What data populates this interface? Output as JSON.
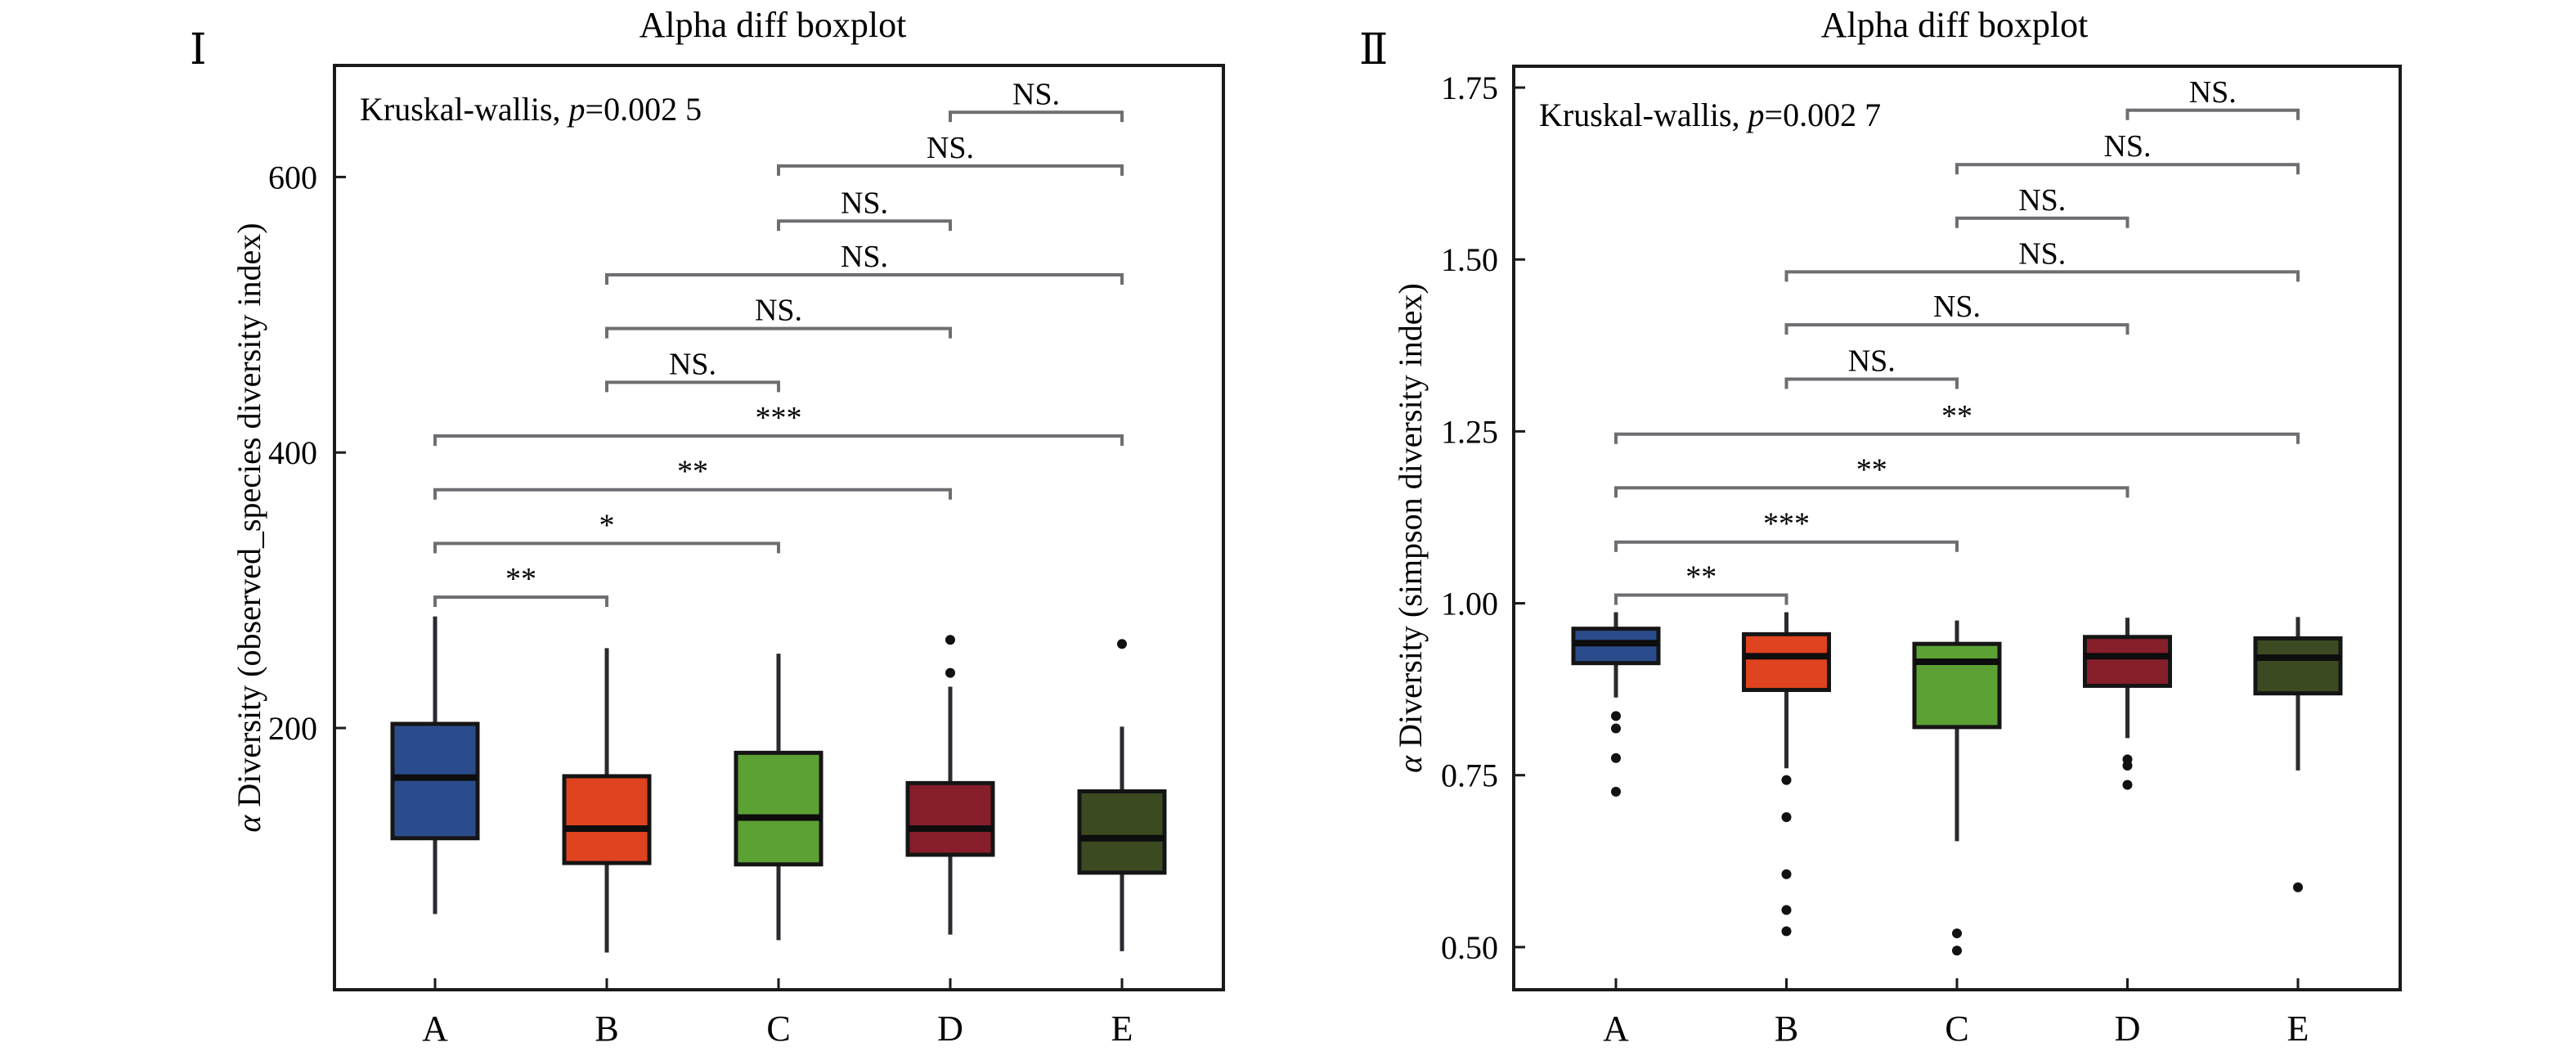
{
  "chart_data": [
    {
      "type": "boxplot",
      "panel_label": "Ⅰ",
      "title": "Alpha diff boxplot",
      "annotation_prefix": "Kruskal-wallis, ",
      "annotation_p_symbol": "p",
      "annotation_value": "=0.002 5",
      "xlabel": "",
      "ylabel_symbol": "α",
      "ylabel": " Diversity (observed_species diversity index)",
      "ylim": [
        10,
        681
      ],
      "yticks": [
        200,
        400,
        600
      ],
      "ytick_labels": [
        "200",
        "400",
        "600"
      ],
      "categories": [
        "A",
        "B",
        "C",
        "D",
        "E"
      ],
      "colors": [
        "#2b4c8c",
        "#e0431f",
        "#5ca133",
        "#861f2a",
        "#3c4a22"
      ],
      "boxes": [
        {
          "category": "A",
          "whisker_low": 65,
          "q1": 120,
          "median": 164,
          "q3": 203,
          "whisker_high": 281,
          "outliers": []
        },
        {
          "category": "B",
          "whisker_low": 37,
          "q1": 102,
          "median": 127,
          "q3": 165,
          "whisker_high": 258,
          "outliers": []
        },
        {
          "category": "C",
          "whisker_low": 46,
          "q1": 101,
          "median": 135,
          "q3": 182,
          "whisker_high": 254,
          "outliers": []
        },
        {
          "category": "D",
          "whisker_low": 50,
          "q1": 108,
          "median": 127,
          "q3": 160,
          "whisker_high": 230,
          "outliers": [
            240,
            264
          ]
        },
        {
          "category": "E",
          "whisker_low": 38,
          "q1": 95,
          "median": 120,
          "q3": 154,
          "whisker_high": 201,
          "outliers": [
            261
          ]
        }
      ],
      "comparisons": [
        {
          "from": "A",
          "to": "B",
          "y": 295,
          "label": "**"
        },
        {
          "from": "A",
          "to": "C",
          "y": 334,
          "label": "*"
        },
        {
          "from": "A",
          "to": "D",
          "y": 373,
          "label": "**"
        },
        {
          "from": "A",
          "to": "E",
          "y": 412,
          "label": "***"
        },
        {
          "from": "B",
          "to": "C",
          "y": 451,
          "label": "NS."
        },
        {
          "from": "B",
          "to": "D",
          "y": 490,
          "label": "NS."
        },
        {
          "from": "B",
          "to": "E",
          "y": 529,
          "label": "NS."
        },
        {
          "from": "C",
          "to": "D",
          "y": 568,
          "label": "NS."
        },
        {
          "from": "C",
          "to": "E",
          "y": 608,
          "label": "NS."
        },
        {
          "from": "D",
          "to": "E",
          "y": 647,
          "label": "NS."
        }
      ],
      "grid": false,
      "legend": "none"
    },
    {
      "type": "boxplot",
      "panel_label": "Ⅱ",
      "title": "Alpha diff boxplot",
      "annotation_prefix": "Kruskal-wallis, ",
      "annotation_p_symbol": "p",
      "annotation_value": "=0.002 7",
      "xlabel": "",
      "ylabel_symbol": "α",
      "ylabel": " Diversity (simpson diversity index)",
      "ylim": [
        0.438,
        1.781
      ],
      "yticks": [
        0.5,
        0.75,
        1.0,
        1.25,
        1.5,
        1.75
      ],
      "ytick_labels": [
        "0.50",
        "0.75",
        "1.00",
        "1.25",
        "1.50",
        "1.75"
      ],
      "categories": [
        "A",
        "B",
        "C",
        "D",
        "E"
      ],
      "colors": [
        "#2b4c8c",
        "#e0431f",
        "#5ca133",
        "#861f2a",
        "#3c4a22"
      ],
      "boxes": [
        {
          "category": "A",
          "whisker_low": 0.863,
          "q1": 0.913,
          "median": 0.942,
          "q3": 0.963,
          "whisker_high": 0.987,
          "outliers": [
            0.836,
            0.818,
            0.775,
            0.726
          ]
        },
        {
          "category": "B",
          "whisker_low": 0.76,
          "q1": 0.874,
          "median": 0.923,
          "q3": 0.955,
          "whisker_high": 0.987,
          "outliers": [
            0.743,
            0.689,
            0.606,
            0.554,
            0.523
          ]
        },
        {
          "category": "C",
          "whisker_low": 0.654,
          "q1": 0.82,
          "median": 0.915,
          "q3": 0.941,
          "whisker_high": 0.975,
          "outliers": [
            0.52,
            0.495
          ]
        },
        {
          "category": "D",
          "whisker_low": 0.804,
          "q1": 0.88,
          "median": 0.923,
          "q3": 0.951,
          "whisker_high": 0.979,
          "outliers": [
            0.773,
            0.764,
            0.736
          ]
        },
        {
          "category": "E",
          "whisker_low": 0.757,
          "q1": 0.869,
          "median": 0.921,
          "q3": 0.949,
          "whisker_high": 0.98,
          "outliers": [
            0.587
          ]
        }
      ],
      "comparisons": [
        {
          "from": "A",
          "to": "B",
          "y": 1.012,
          "label": "**"
        },
        {
          "from": "A",
          "to": "C",
          "y": 1.089,
          "label": "***"
        },
        {
          "from": "A",
          "to": "D",
          "y": 1.168,
          "label": "**"
        },
        {
          "from": "A",
          "to": "E",
          "y": 1.246,
          "label": "**"
        },
        {
          "from": "B",
          "to": "C",
          "y": 1.326,
          "label": "NS."
        },
        {
          "from": "B",
          "to": "D",
          "y": 1.405,
          "label": "NS."
        },
        {
          "from": "B",
          "to": "E",
          "y": 1.482,
          "label": "NS."
        },
        {
          "from": "C",
          "to": "D",
          "y": 1.56,
          "label": "NS."
        },
        {
          "from": "C",
          "to": "E",
          "y": 1.638,
          "label": "NS."
        },
        {
          "from": "D",
          "to": "E",
          "y": 1.717,
          "label": "NS."
        }
      ],
      "grid": false,
      "legend": "none"
    }
  ]
}
